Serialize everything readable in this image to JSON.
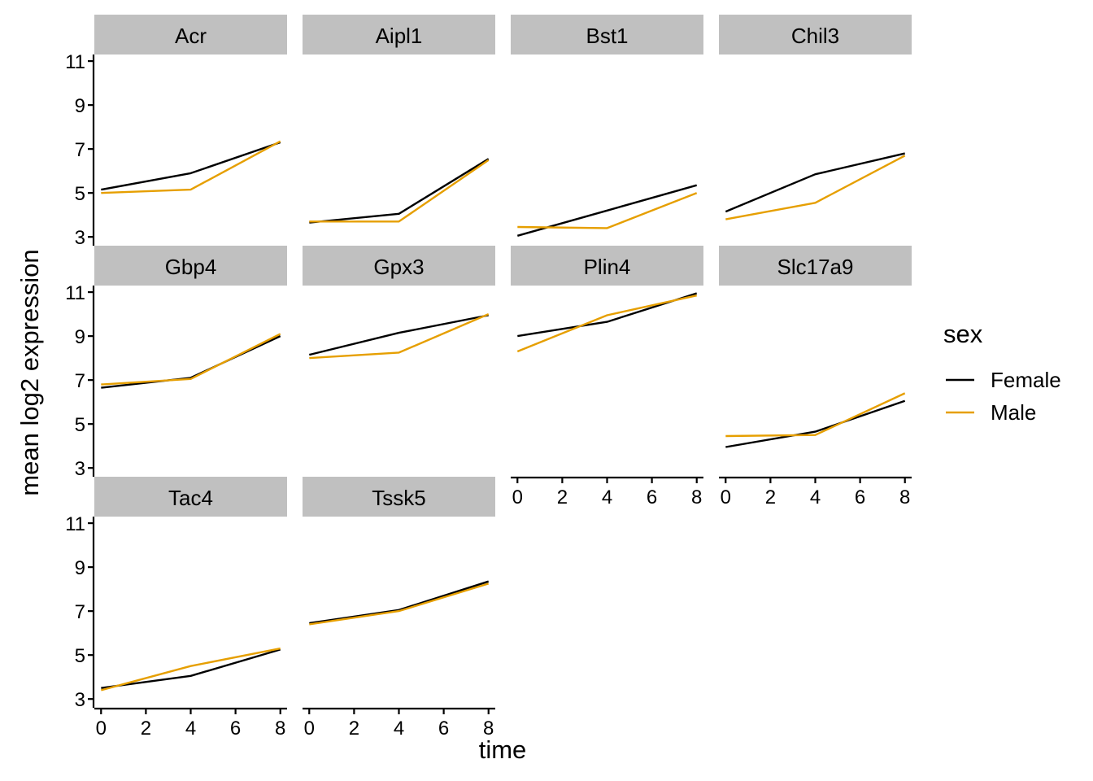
{
  "chart_data": {
    "type": "line",
    "xlabel": "time",
    "ylabel": "mean log2 expression",
    "x": [
      0,
      4,
      8
    ],
    "xlim": [
      -0.3,
      8.3
    ],
    "ylim": [
      2.6,
      11.3
    ],
    "xticks": [
      0,
      2,
      4,
      6,
      8
    ],
    "yticks": [
      3,
      5,
      7,
      9,
      11
    ],
    "grid": false,
    "legend": {
      "title": "sex",
      "placement": "right",
      "entries": [
        {
          "name": "Female",
          "color": "#000000"
        },
        {
          "name": "Male",
          "color": "#E69F00"
        }
      ]
    },
    "panels": [
      {
        "name": "Acr",
        "series": [
          {
            "name": "Female",
            "values": [
              5.15,
              5.9,
              7.3
            ]
          },
          {
            "name": "Male",
            "values": [
              5.0,
              5.15,
              7.35
            ]
          }
        ]
      },
      {
        "name": "Aipl1",
        "series": [
          {
            "name": "Female",
            "values": [
              3.65,
              4.05,
              6.55
            ]
          },
          {
            "name": "Male",
            "values": [
              3.7,
              3.7,
              6.5
            ]
          }
        ]
      },
      {
        "name": "Bst1",
        "series": [
          {
            "name": "Female",
            "values": [
              3.05,
              4.2,
              5.35
            ]
          },
          {
            "name": "Male",
            "values": [
              3.45,
              3.4,
              5.0
            ]
          }
        ]
      },
      {
        "name": "Chil3",
        "series": [
          {
            "name": "Female",
            "values": [
              4.15,
              5.85,
              6.8
            ]
          },
          {
            "name": "Male",
            "values": [
              3.8,
              4.55,
              6.7
            ]
          }
        ]
      },
      {
        "name": "Gbp4",
        "series": [
          {
            "name": "Female",
            "values": [
              6.65,
              7.1,
              9.0
            ]
          },
          {
            "name": "Male",
            "values": [
              6.8,
              7.05,
              9.1
            ]
          }
        ]
      },
      {
        "name": "Gpx3",
        "series": [
          {
            "name": "Female",
            "values": [
              8.15,
              9.15,
              9.95
            ]
          },
          {
            "name": "Male",
            "values": [
              8.0,
              8.25,
              10.0
            ]
          }
        ]
      },
      {
        "name": "Plin4",
        "series": [
          {
            "name": "Female",
            "values": [
              9.0,
              9.65,
              10.95
            ]
          },
          {
            "name": "Male",
            "values": [
              8.3,
              9.95,
              10.85
            ]
          }
        ]
      },
      {
        "name": "Slc17a9",
        "series": [
          {
            "name": "Female",
            "values": [
              3.95,
              4.65,
              6.05
            ]
          },
          {
            "name": "Male",
            "values": [
              4.45,
              4.5,
              6.4
            ]
          }
        ]
      },
      {
        "name": "Tac4",
        "series": [
          {
            "name": "Female",
            "values": [
              3.5,
              4.05,
              5.25
            ]
          },
          {
            "name": "Male",
            "values": [
              3.4,
              4.5,
              5.3
            ]
          }
        ]
      },
      {
        "name": "Tssk5",
        "series": [
          {
            "name": "Female",
            "values": [
              6.45,
              7.05,
              8.35
            ]
          },
          {
            "name": "Male",
            "values": [
              6.4,
              7.0,
              8.25
            ]
          }
        ]
      }
    ]
  }
}
